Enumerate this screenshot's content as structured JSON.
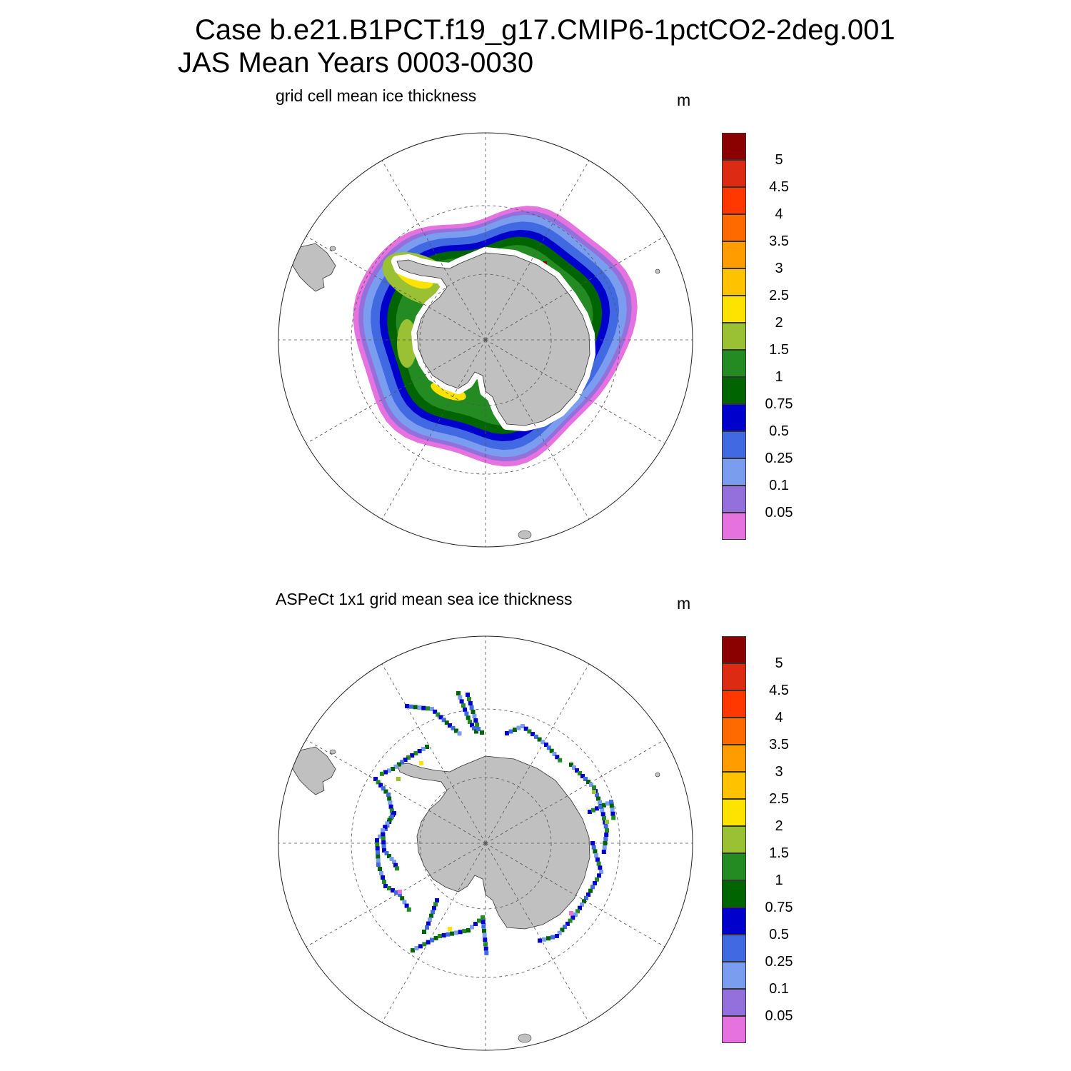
{
  "title": {
    "line1": "Case b.e21.B1PCT.f19_g17.CMIP6-1pctCO2-2deg.001",
    "line2": "JAS Mean   Years 0003-0030"
  },
  "panels": [
    {
      "title": "grid cell mean ice thickness",
      "unit": "m",
      "field": "model"
    },
    {
      "title": "ASPeCt 1x1 grid mean sea ice thickness",
      "unit": "m",
      "field": "observed"
    }
  ],
  "colorbar": {
    "colors": [
      "#8b0000",
      "#dd2a12",
      "#ff3800",
      "#ff6a00",
      "#ff9d00",
      "#ffc200",
      "#ffe300",
      "#9ac034",
      "#238b22",
      "#006400",
      "#0000cd",
      "#4169e1",
      "#7b9df0",
      "#9370db",
      "#e672e0"
    ],
    "labels": [
      "5",
      "4.5",
      "4",
      "3.5",
      "3",
      "2.5",
      "2",
      "1.5",
      "1",
      "0.75",
      "0.5",
      "0.25",
      "0.1",
      "0.05"
    ]
  },
  "colors": {
    "land": "#c0c0c0",
    "grid": "#555555"
  }
}
